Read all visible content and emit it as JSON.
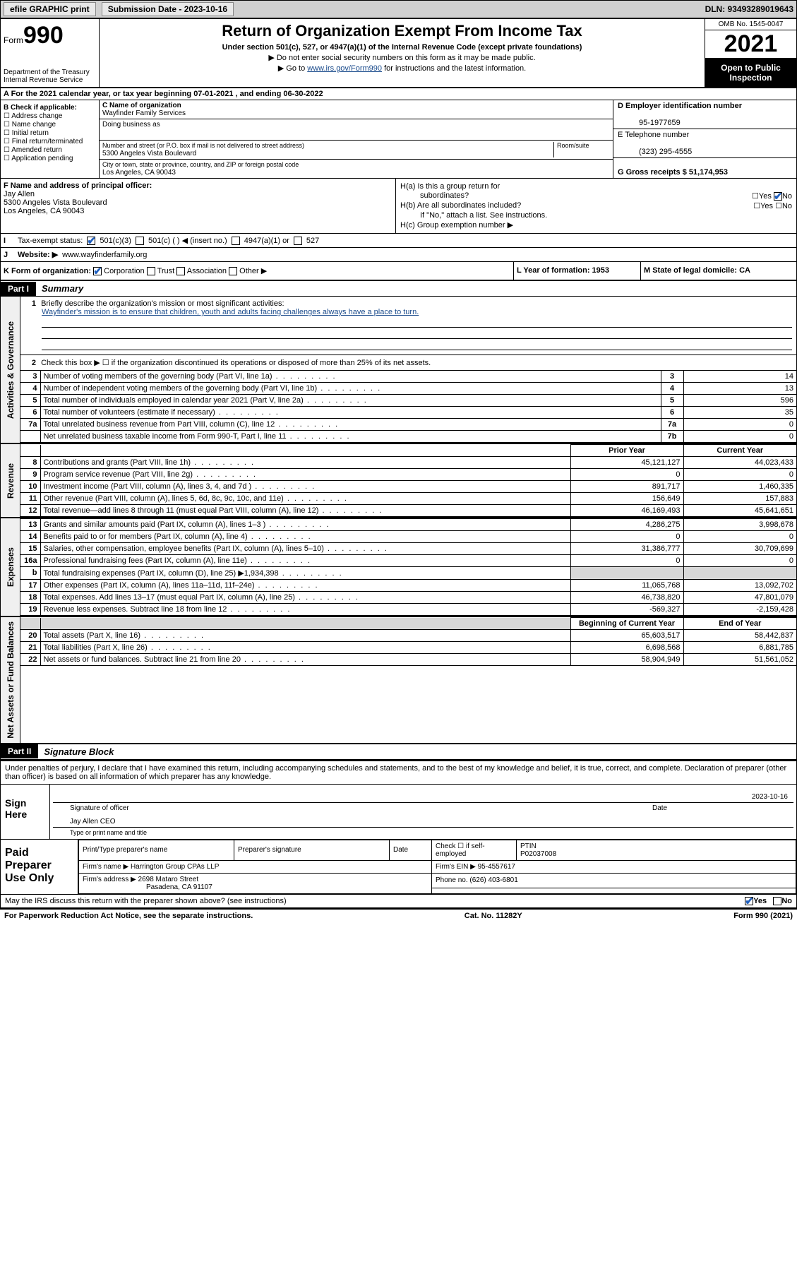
{
  "top": {
    "efile": "efile GRAPHIC print",
    "submission_label": "Submission Date - 2023-10-16",
    "dln": "DLN: 93493289019643"
  },
  "header": {
    "form_word": "Form",
    "form_num": "990",
    "dept": "Department of the Treasury",
    "irs": "Internal Revenue Service",
    "title": "Return of Organization Exempt From Income Tax",
    "sub": "Under section 501(c), 527, or 4947(a)(1) of the Internal Revenue Code (except private foundations)",
    "line1": "▶ Do not enter social security numbers on this form as it may be made public.",
    "line2a": "▶ Go to ",
    "line2_link": "www.irs.gov/Form990",
    "line2b": " for instructions and the latest information.",
    "omb": "OMB No. 1545-0047",
    "year": "2021",
    "open": "Open to Public Inspection"
  },
  "rowA": {
    "text": "A For the 2021 calendar year, or tax year beginning 07-01-2021   , and ending 06-30-2022"
  },
  "blockB": {
    "title": "B Check if applicable:",
    "items": [
      "Address change",
      "Name change",
      "Initial return",
      "Final return/terminated",
      "Amended return",
      "Application pending"
    ]
  },
  "blockC": {
    "name_label": "C Name of organization",
    "name": "Wayfinder Family Services",
    "dba_label": "Doing business as",
    "addr_label": "Number and street (or P.O. box if mail is not delivered to street address)",
    "room_label": "Room/suite",
    "addr": "5300 Angeles Vista Boulevard",
    "city_label": "City or town, state or province, country, and ZIP or foreign postal code",
    "city": "Los Angeles, CA  90043"
  },
  "blockD": {
    "ein_label": "D Employer identification number",
    "ein": "95-1977659",
    "phone_label": "E Telephone number",
    "phone": "(323) 295-4555",
    "gross_label": "G Gross receipts $ 51,174,953"
  },
  "blockF": {
    "label": "F  Name and address of principal officer:",
    "name": "Jay Allen",
    "addr1": "5300 Angeles Vista Boulevard",
    "addr2": "Los Angeles, CA  90043"
  },
  "blockH": {
    "a1": "H(a)  Is this a group return for",
    "a2": "subordinates?",
    "b1": "H(b)  Are all subordinates included?",
    "note": "If \"No,\" attach a list. See instructions.",
    "c": "H(c)  Group exemption number ▶",
    "yes": "Yes",
    "no": "No"
  },
  "rowI": {
    "label": "Tax-exempt status:",
    "opt1": "501(c)(3)",
    "opt2": "501(c) (  ) ◀ (insert no.)",
    "opt3": "4947(a)(1) or",
    "opt4": "527"
  },
  "rowJ": {
    "label": "Website: ▶",
    "value": "www.wayfinderfamily.org"
  },
  "rowK": {
    "label": "K Form of organization:",
    "opts": [
      "Corporation",
      "Trust",
      "Association",
      "Other ▶"
    ]
  },
  "rowL": {
    "label": "L Year of formation: 1953"
  },
  "rowM": {
    "label": "M State of legal domicile: CA"
  },
  "partI": {
    "tab": "Part I",
    "title": "Summary"
  },
  "sectionLabels": {
    "gov": "Activities & Governance",
    "rev": "Revenue",
    "exp": "Expenses",
    "net": "Net Assets or Fund Balances"
  },
  "mission": {
    "num": "1",
    "label": "Briefly describe the organization's mission or most significant activities:",
    "text": "Wayfinder's mission is to ensure that children, youth and adults facing challenges always have a place to turn."
  },
  "gov": {
    "l2": "Check this box ▶ ☐  if the organization discontinued its operations or disposed of more than 25% of its net assets.",
    "rows": [
      {
        "n": "3",
        "d": "Number of voting members of the governing body (Part VI, line 1a)",
        "b": "3",
        "v": "14"
      },
      {
        "n": "4",
        "d": "Number of independent voting members of the governing body (Part VI, line 1b)",
        "b": "4",
        "v": "13"
      },
      {
        "n": "5",
        "d": "Total number of individuals employed in calendar year 2021 (Part V, line 2a)",
        "b": "5",
        "v": "596"
      },
      {
        "n": "6",
        "d": "Total number of volunteers (estimate if necessary)",
        "b": "6",
        "v": "35"
      },
      {
        "n": "7a",
        "d": "Total unrelated business revenue from Part VIII, column (C), line 12",
        "b": "7a",
        "v": "0"
      },
      {
        "n": "",
        "d": "Net unrelated business taxable income from Form 990-T, Part I, line 11",
        "b": "7b",
        "v": "0"
      }
    ]
  },
  "colHdr": {
    "prior": "Prior Year",
    "current": "Current Year",
    "boy": "Beginning of Current Year",
    "eoy": "End of Year"
  },
  "rev": [
    {
      "n": "8",
      "d": "Contributions and grants (Part VIII, line 1h)",
      "p": "45,121,127",
      "c": "44,023,433"
    },
    {
      "n": "9",
      "d": "Program service revenue (Part VIII, line 2g)",
      "p": "0",
      "c": "0"
    },
    {
      "n": "10",
      "d": "Investment income (Part VIII, column (A), lines 3, 4, and 7d )",
      "p": "891,717",
      "c": "1,460,335"
    },
    {
      "n": "11",
      "d": "Other revenue (Part VIII, column (A), lines 5, 6d, 8c, 9c, 10c, and 11e)",
      "p": "156,649",
      "c": "157,883"
    },
    {
      "n": "12",
      "d": "Total revenue—add lines 8 through 11 (must equal Part VIII, column (A), line 12)",
      "p": "46,169,493",
      "c": "45,641,651"
    }
  ],
  "exp": [
    {
      "n": "13",
      "d": "Grants and similar amounts paid (Part IX, column (A), lines 1–3 )",
      "p": "4,286,275",
      "c": "3,998,678"
    },
    {
      "n": "14",
      "d": "Benefits paid to or for members (Part IX, column (A), line 4)",
      "p": "0",
      "c": "0"
    },
    {
      "n": "15",
      "d": "Salaries, other compensation, employee benefits (Part IX, column (A), lines 5–10)",
      "p": "31,386,777",
      "c": "30,709,699"
    },
    {
      "n": "16a",
      "d": "Professional fundraising fees (Part IX, column (A), line 11e)",
      "p": "0",
      "c": "0"
    },
    {
      "n": "b",
      "d": "Total fundraising expenses (Part IX, column (D), line 25) ▶1,934,398",
      "p": "",
      "c": "",
      "shade": true
    },
    {
      "n": "17",
      "d": "Other expenses (Part IX, column (A), lines 11a–11d, 11f–24e)",
      "p": "11,065,768",
      "c": "13,092,702"
    },
    {
      "n": "18",
      "d": "Total expenses. Add lines 13–17 (must equal Part IX, column (A), line 25)",
      "p": "46,738,820",
      "c": "47,801,079"
    },
    {
      "n": "19",
      "d": "Revenue less expenses. Subtract line 18 from line 12",
      "p": "-569,327",
      "c": "-2,159,428"
    }
  ],
  "net": [
    {
      "n": "20",
      "d": "Total assets (Part X, line 16)",
      "p": "65,603,517",
      "c": "58,442,837"
    },
    {
      "n": "21",
      "d": "Total liabilities (Part X, line 26)",
      "p": "6,698,568",
      "c": "6,881,785"
    },
    {
      "n": "22",
      "d": "Net assets or fund balances. Subtract line 21 from line 20",
      "p": "58,904,949",
      "c": "51,561,052"
    }
  ],
  "partII": {
    "tab": "Part II",
    "title": "Signature Block"
  },
  "sig": {
    "intro": "Under penalties of perjury, I declare that I have examined this return, including accompanying schedules and statements, and to the best of my knowledge and belief, it is true, correct, and complete. Declaration of preparer (other than officer) is based on all information of which preparer has any knowledge.",
    "sign_here": "Sign Here",
    "officer_sig_label": "Signature of officer",
    "date_label": "Date",
    "date": "2023-10-16",
    "officer_name": "Jay Allen CEO",
    "name_label": "Type or print name and title"
  },
  "paid": {
    "label": "Paid Preparer Use Only",
    "h1": "Print/Type preparer's name",
    "h2": "Preparer's signature",
    "h3": "Date",
    "h4a": "Check ☐ if self-employed",
    "h4b_label": "PTIN",
    "h4b": "P02037008",
    "firm_name_label": "Firm's name    ▶",
    "firm_name": "Harrington Group CPAs LLP",
    "firm_ein_label": "Firm's EIN ▶",
    "firm_ein": "95-4557617",
    "firm_addr_label": "Firm's address ▶",
    "firm_addr1": "2698 Mataro Street",
    "firm_addr2": "Pasadena, CA  91107",
    "phone_label": "Phone no.",
    "phone": "(626) 403-6801"
  },
  "footer": {
    "discuss": "May the IRS discuss this return with the preparer shown above? (see instructions)",
    "yes": "Yes",
    "no": "No",
    "pra": "For Paperwork Reduction Act Notice, see the separate instructions.",
    "cat": "Cat. No. 11282Y",
    "form": "Form 990 (2021)"
  },
  "colors": {
    "link": "#1a4b8c",
    "check": "#2060c0",
    "shade": "#d8d8d8"
  }
}
